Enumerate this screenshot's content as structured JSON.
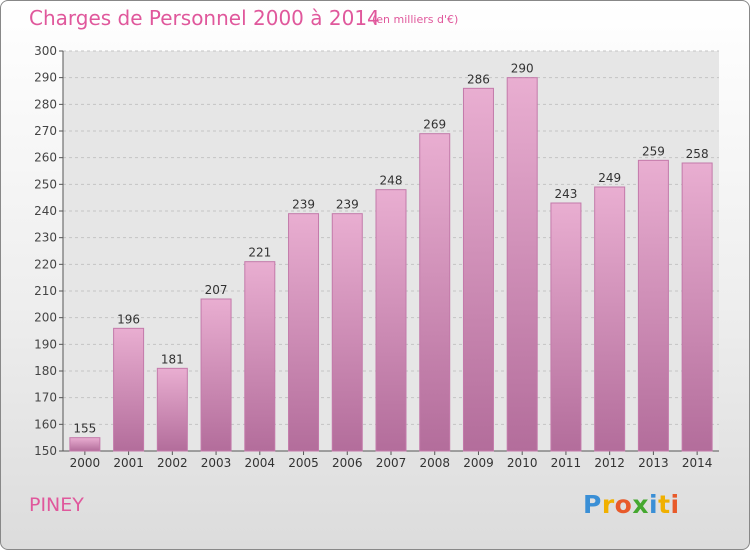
{
  "header": {
    "title": "Charges de Personnel 2000 à 2014",
    "subtitle": "(en milliers d'€)"
  },
  "footer": {
    "commune": "PINEY",
    "brand_letters": [
      "P",
      "r",
      "o",
      "x",
      "i",
      "t",
      "i"
    ]
  },
  "colors": {
    "title": "#e0589c",
    "bar_top": "#e9aed1",
    "bar_bottom": "#b36d9b",
    "bar_edge": "#c37aaa"
  },
  "chart_data": {
    "type": "bar",
    "title": "Charges de Personnel 2000 à 2014",
    "subtitle": "(en milliers d'€)",
    "categories": [
      "2000",
      "2001",
      "2002",
      "2003",
      "2004",
      "2005",
      "2006",
      "2007",
      "2008",
      "2009",
      "2010",
      "2011",
      "2012",
      "2013",
      "2014"
    ],
    "values": [
      155,
      196,
      181,
      207,
      221,
      239,
      239,
      248,
      269,
      286,
      290,
      243,
      249,
      259,
      258
    ],
    "ylim": [
      150,
      300
    ],
    "yticks": [
      150,
      160,
      170,
      180,
      190,
      200,
      210,
      220,
      230,
      240,
      250,
      260,
      270,
      280,
      290,
      300
    ],
    "grid": true,
    "data_labels": true
  }
}
